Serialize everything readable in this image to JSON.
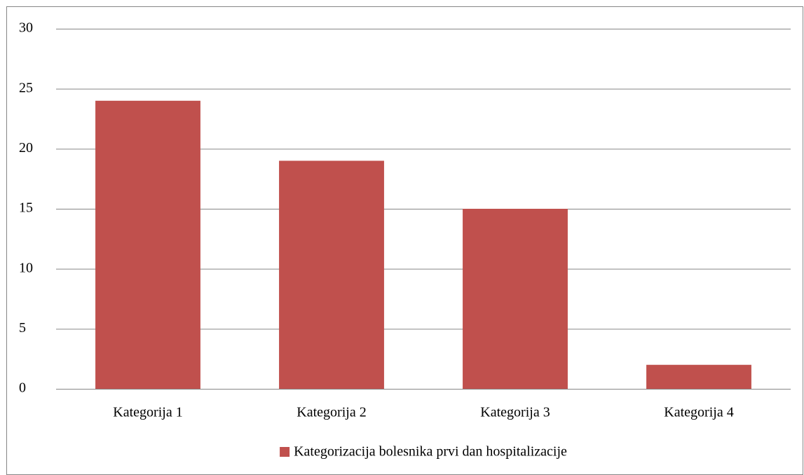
{
  "chart_data": {
    "type": "bar",
    "categories": [
      "Kategorija 1",
      "Kategorija 2",
      "Kategorija 3",
      "Kategorija 4"
    ],
    "series": [
      {
        "name": "Kategorizacija bolesnika prvi dan hospitalizacije",
        "color": "#c0504d",
        "values": [
          24,
          19,
          15,
          2
        ]
      }
    ],
    "ylim": [
      0,
      30
    ],
    "yticks": [
      0,
      5,
      10,
      15,
      20,
      25,
      30
    ],
    "grid": true,
    "legend": "bottom"
  }
}
